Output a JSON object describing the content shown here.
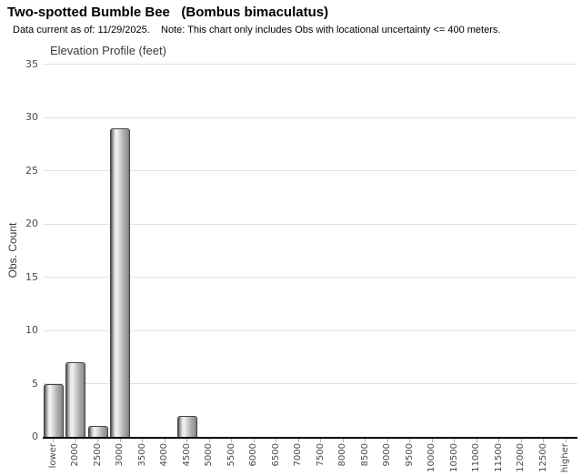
{
  "header": {
    "title": "Two-spotted Bumble Bee   (Bombus bimaculatus)",
    "subtitle": "Data current as of: 11/29/2025.    Note: This chart only includes Obs with locational uncertainty <= 400 meters."
  },
  "chart_data": {
    "type": "bar",
    "title": "Elevation Profile (feet)",
    "xlabel": "",
    "ylabel": "Obs. Count",
    "categories": [
      "lower",
      "2000",
      "2500",
      "3000",
      "3500",
      "4000",
      "4500",
      "5000",
      "5500",
      "6000",
      "6500",
      "7000",
      "7500",
      "8000",
      "8500",
      "9000",
      "9500",
      "10000",
      "10500",
      "11000",
      "11500",
      "12000",
      "12500",
      "higher"
    ],
    "values": [
      5,
      7,
      1,
      29,
      0,
      0,
      2,
      0,
      0,
      0,
      0,
      0,
      0,
      0,
      0,
      0,
      0,
      0,
      0,
      0,
      0,
      0,
      0,
      0
    ],
    "ylim": [
      0,
      35
    ],
    "yticks": [
      0,
      5,
      10,
      15,
      20,
      25,
      30,
      35
    ],
    "grid": true,
    "legend_position": "none",
    "colors": {
      "gridline": "#e2e2e2",
      "axis_line": "#000000",
      "bar_outline": "#454545",
      "bar_highlight": "#f2f2f2",
      "bar_shadow": "#474747",
      "tick_mark": "#b0b0b0",
      "tick_label": "#4a4a4a",
      "title_text": "#000000",
      "chart_title_text": "#3a3a3a"
    }
  }
}
